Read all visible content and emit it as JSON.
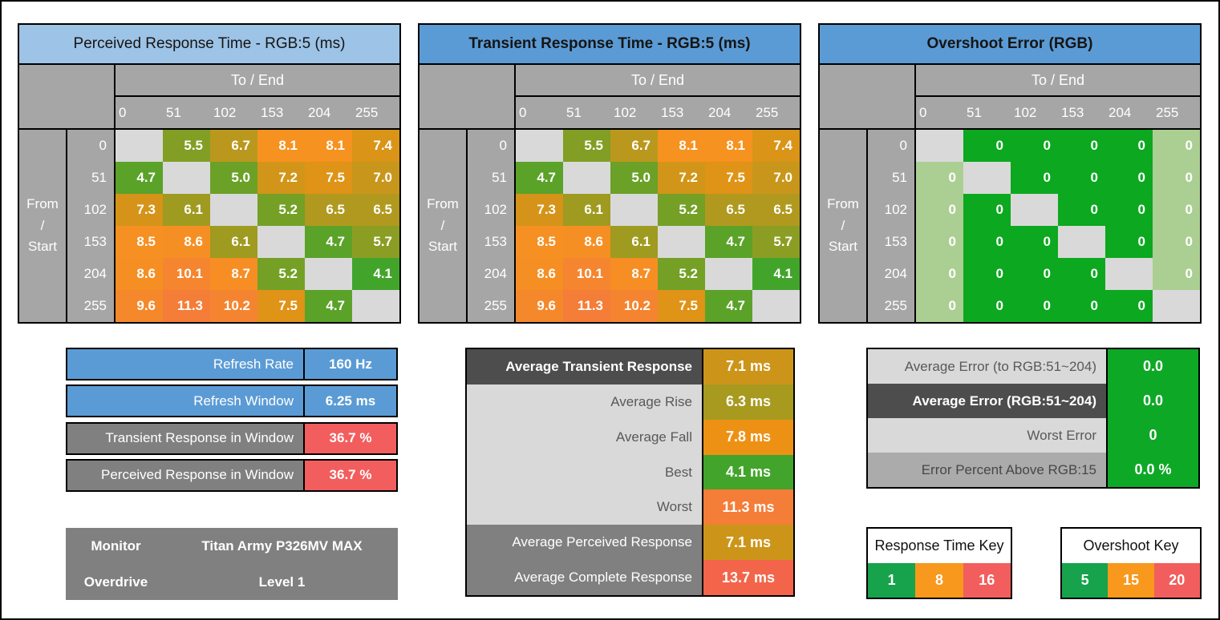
{
  "palette": {
    "title_light_blue": "#9DC3E6",
    "title_blue": "#5B9BD5",
    "header_gray": "#A6A6A6",
    "diagonal_gray": "#D9D9D9",
    "row_dark": "#4D4D4D",
    "row_mid": "#808080",
    "row_light": "#D9D9D9",
    "row_medium": "#ABABAB",
    "label_text_gray": "#595959",
    "label_text_dark": "#474747",
    "accent_blue": "#5B9BD5",
    "alert_red": "#F25E5E",
    "key_green": "#16A34C",
    "key_orange": "#F8981D",
    "key_red": "#F25E5E",
    "overshoot_green": "#0CA81F",
    "overshoot_light_green": "#ABCF92",
    "error_value_green": "#0EA827",
    "value_colors": {
      "4.1": "#43A42C",
      "4.7": "#5BA228",
      "5.0": "#6BA126",
      "5.2": "#74A025",
      "5.5": "#829E24",
      "5.7": "#8B9D23",
      "6.1": "#9E9B20",
      "6.3": "#A79A1F",
      "6.5": "#B0991E",
      "6.7": "#BA981D",
      "7.0": "#C8961B",
      "7.1": "#CC951A",
      "7.2": "#D19519",
      "7.3": "#D59419",
      "7.4": "#DA9418",
      "7.5": "#DF9317",
      "7.8": "#ED9115",
      "8.1": "#F6921F",
      "8.5": "#F69022",
      "8.6": "#F68F23",
      "8.7": "#F68E24",
      "9.6": "#F5882B",
      "10.1": "#F5852F",
      "10.2": "#F58430",
      "11.3": "#F47D38",
      "13.7": "#F3654B"
    }
  },
  "chart_data": [
    {
      "type": "heatmap",
      "title": "Perceived Response Time - RGB:5 (ms)",
      "title_style": "light",
      "xlabel": "To / End",
      "ylabel": "From / Start",
      "x": [
        "0",
        "51",
        "102",
        "153",
        "204",
        "255"
      ],
      "y": [
        "0",
        "51",
        "102",
        "153",
        "204",
        "255"
      ],
      "unit": "ms",
      "format": "1dp",
      "palette": "response",
      "values": [
        [
          null,
          5.5,
          6.7,
          8.1,
          8.1,
          7.4
        ],
        [
          4.7,
          null,
          5.0,
          7.2,
          7.5,
          7.0
        ],
        [
          7.3,
          6.1,
          null,
          5.2,
          6.5,
          6.5
        ],
        [
          8.5,
          8.6,
          6.1,
          null,
          4.7,
          5.7
        ],
        [
          8.6,
          10.1,
          8.7,
          5.2,
          null,
          4.1
        ],
        [
          9.6,
          11.3,
          10.2,
          7.5,
          4.7,
          null
        ]
      ]
    },
    {
      "type": "heatmap",
      "title": "Transient Response Time - RGB:5 (ms)",
      "title_style": "bold",
      "xlabel": "To / End",
      "ylabel": "From / Start",
      "x": [
        "0",
        "51",
        "102",
        "153",
        "204",
        "255"
      ],
      "y": [
        "0",
        "51",
        "102",
        "153",
        "204",
        "255"
      ],
      "unit": "ms",
      "format": "1dp",
      "palette": "response",
      "values": [
        [
          null,
          5.5,
          6.7,
          8.1,
          8.1,
          7.4
        ],
        [
          4.7,
          null,
          5.0,
          7.2,
          7.5,
          7.0
        ],
        [
          7.3,
          6.1,
          null,
          5.2,
          6.5,
          6.5
        ],
        [
          8.5,
          8.6,
          6.1,
          null,
          4.7,
          5.7
        ],
        [
          8.6,
          10.1,
          8.7,
          5.2,
          null,
          4.1
        ],
        [
          9.6,
          11.3,
          10.2,
          7.5,
          4.7,
          null
        ]
      ]
    },
    {
      "type": "heatmap",
      "title": "Overshoot Error (RGB)",
      "title_style": "bold",
      "xlabel": "To / End",
      "ylabel": "From / Start",
      "x": [
        "0",
        "51",
        "102",
        "153",
        "204",
        "255"
      ],
      "y": [
        "0",
        "51",
        "102",
        "153",
        "204",
        "255"
      ],
      "unit": "RGB",
      "format": "int",
      "palette": "overshoot",
      "values": [
        [
          null,
          0,
          0,
          0,
          0,
          0
        ],
        [
          0,
          null,
          0,
          0,
          0,
          0
        ],
        [
          0,
          0,
          null,
          0,
          0,
          0
        ],
        [
          0,
          0,
          0,
          null,
          0,
          0
        ],
        [
          0,
          0,
          0,
          0,
          null,
          0
        ],
        [
          0,
          0,
          0,
          0,
          0,
          null
        ]
      ]
    }
  ],
  "refresh_table": {
    "rows": [
      {
        "label": "Refresh Rate",
        "value": "160 Hz",
        "label_bg": "blue",
        "value_bg": "blue"
      },
      {
        "label": "Refresh Window",
        "value": "6.25 ms",
        "label_bg": "blue",
        "value_bg": "blue"
      },
      {
        "label": "Transient Response in Window",
        "value": "36.7 %",
        "label_bg": "gray",
        "value_bg": "red"
      },
      {
        "label": "Perceived Response in Window",
        "value": "36.7 %",
        "label_bg": "gray",
        "value_bg": "red"
      }
    ]
  },
  "monitor_table": {
    "rows": [
      {
        "label": "Monitor",
        "value": "Titan Army P326MV MAX"
      },
      {
        "label": "Overdrive",
        "value": "Level 1"
      }
    ]
  },
  "averages_table": {
    "rows": [
      {
        "label": "Average Transient Response",
        "value": "7.1 ms",
        "value_key": "7.1",
        "row_style": "dark"
      },
      {
        "label": "Average Rise",
        "value": "6.3 ms",
        "value_key": "6.3",
        "row_style": "light"
      },
      {
        "label": "Average Fall",
        "value": "7.8 ms",
        "value_key": "7.8",
        "row_style": "light"
      },
      {
        "label": "Best",
        "value": "4.1 ms",
        "value_key": "4.1",
        "row_style": "light"
      },
      {
        "label": "Worst",
        "value": "11.3 ms",
        "value_key": "11.3",
        "row_style": "light"
      },
      {
        "label": "Average Perceived Response",
        "value": "7.1 ms",
        "value_key": "7.1",
        "row_style": "mid"
      },
      {
        "label": "Average Complete Response",
        "value": "13.7 ms",
        "value_key": "13.7",
        "row_style": "mid"
      }
    ]
  },
  "error_table": {
    "rows": [
      {
        "label": "Average Error (to RGB:51~204)",
        "value": "0.0",
        "row_style": "light"
      },
      {
        "label": "Average Error (RGB:51~204)",
        "value": "0.0",
        "row_style": "dark"
      },
      {
        "label": "Worst Error",
        "value": "0",
        "row_style": "light"
      },
      {
        "label": "Error Percent Above RGB:15",
        "value": "0.0 %",
        "row_style": "medium"
      }
    ]
  },
  "keys": [
    {
      "title": "Response Time Key",
      "cells": [
        {
          "label": "1",
          "color": "#16A34C"
        },
        {
          "label": "8",
          "color": "#F8981D"
        },
        {
          "label": "16",
          "color": "#F25E5E"
        }
      ]
    },
    {
      "title": "Overshoot Key",
      "cells": [
        {
          "label": "5",
          "color": "#16A34C"
        },
        {
          "label": "15",
          "color": "#F8981D"
        },
        {
          "label": "20",
          "color": "#F25E5E"
        }
      ]
    }
  ]
}
